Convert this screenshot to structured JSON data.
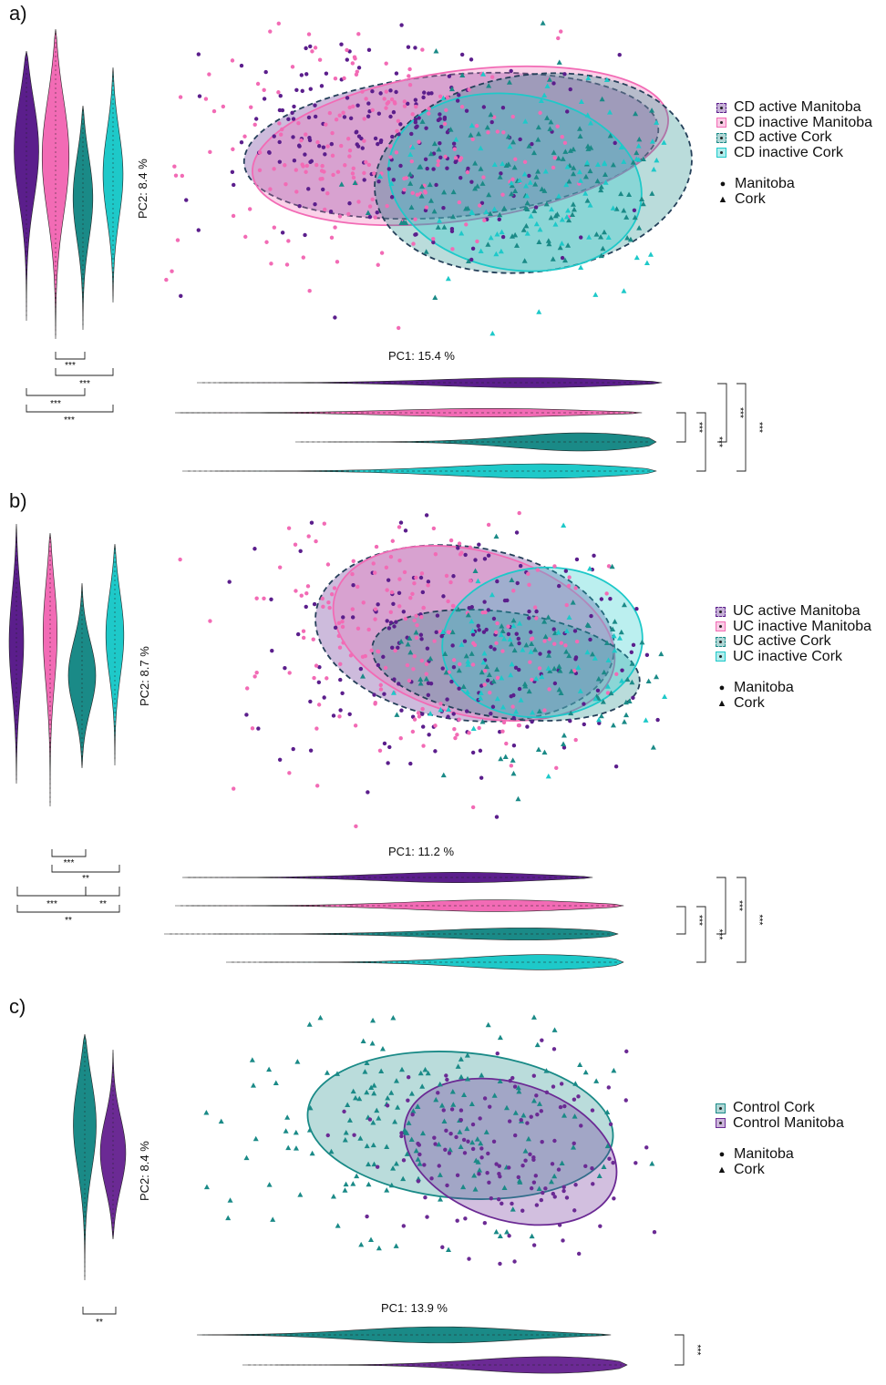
{
  "colors": {
    "cd_active_manitoba": "#5b1e8c",
    "cd_inactive_manitoba": "#f26bb5",
    "cd_active_cork": "#1a8a87",
    "cd_inactive_cork": "#1ec9c9",
    "control_cork": "#1a8a87",
    "control_manitoba": "#6b2a94"
  },
  "chart_data": [
    {
      "panel": "a)",
      "type": "scatter",
      "xlabel": "PC1: 15.4 %",
      "ylabel": "PC2: 8.4 %",
      "series": [
        {
          "name": "CD active Manitoba",
          "color": "#5b1e8c",
          "linestyle": "dashed"
        },
        {
          "name": "CD inactive Manitoba",
          "color": "#f26bb5",
          "linestyle": "solid"
        },
        {
          "name": "CD active Cork",
          "color": "#1a8a87",
          "linestyle": "dashed"
        },
        {
          "name": "CD inactive Cork",
          "color": "#1ec9c9",
          "linestyle": "solid"
        }
      ],
      "shape_legend": [
        "Manitoba",
        "Cork"
      ],
      "pc2_significance": [
        "***",
        "***",
        "***",
        "***"
      ],
      "pc1_significance": [
        "***",
        "***",
        "***",
        "***"
      ]
    },
    {
      "panel": "b)",
      "type": "scatter",
      "xlabel": "PC1: 11.2 %",
      "ylabel": "PC2: 8.7 %",
      "series": [
        {
          "name": "UC active Manitoba",
          "color": "#5b1e8c",
          "linestyle": "dashed"
        },
        {
          "name": "UC inactive Manitoba",
          "color": "#f26bb5",
          "linestyle": "solid"
        },
        {
          "name": "UC active Cork",
          "color": "#1a8a87",
          "linestyle": "dashed"
        },
        {
          "name": "UC inactive Cork",
          "color": "#1ec9c9",
          "linestyle": "solid"
        }
      ],
      "shape_legend": [
        "Manitoba",
        "Cork"
      ],
      "pc2_significance": [
        "***",
        "**",
        "***",
        "**",
        "**"
      ],
      "pc1_significance": [
        "***",
        "***",
        "***",
        "***"
      ]
    },
    {
      "panel": "c)",
      "type": "scatter",
      "xlabel": "PC1: 13.9 %",
      "ylabel": "PC2: 8.4 %",
      "series": [
        {
          "name": "Control Cork",
          "color": "#1a8a87",
          "linestyle": "solid"
        },
        {
          "name": "Control Manitoba",
          "color": "#6b2a94",
          "linestyle": "solid"
        }
      ],
      "shape_legend": [
        "Manitoba",
        "Cork"
      ],
      "pc2_significance": [
        "**"
      ],
      "pc1_significance": [
        "***"
      ]
    }
  ]
}
